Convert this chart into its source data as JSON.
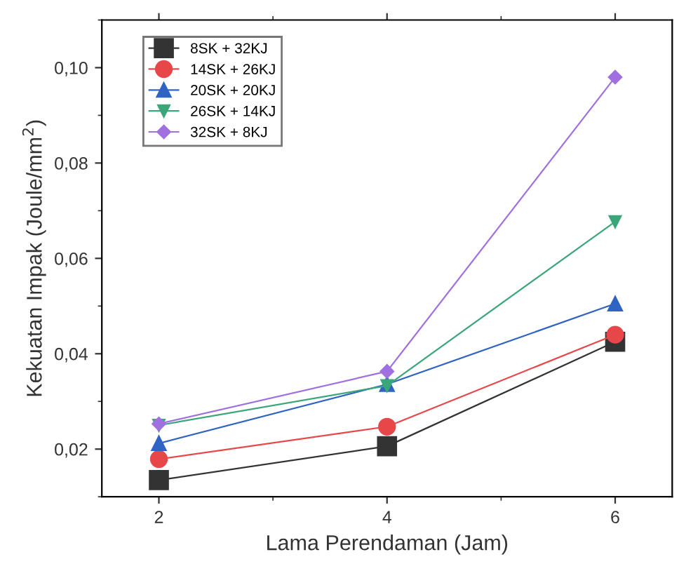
{
  "chart_data": {
    "type": "line",
    "xlabel": "Lama Perendaman (Jam)",
    "ylabel": "Kekuatan Impak (Joule/mm$^{2}$)",
    "x": [
      2,
      4,
      6
    ],
    "series": [
      {
        "name": "8SK + 32KJ",
        "color": "#333333",
        "marker": "square",
        "values": [
          0.0135,
          0.0206,
          0.0425
        ]
      },
      {
        "name": "14SK + 26KJ",
        "color": "#e8474a",
        "marker": "circle",
        "values": [
          0.0179,
          0.0247,
          0.044
        ]
      },
      {
        "name": "20SK + 20KJ",
        "color": "#2f63c4",
        "marker": "triangle",
        "values": [
          0.0212,
          0.0336,
          0.0505
        ]
      },
      {
        "name": "26SK + 14KJ",
        "color": "#3aa67a",
        "marker": "triangle_down",
        "values": [
          0.025,
          0.0333,
          0.0677
        ]
      },
      {
        "name": "32SK + 8KJ",
        "color": "#a070e0",
        "marker": "diamond",
        "values": [
          0.0253,
          0.0363,
          0.098
        ]
      }
    ],
    "xlim": [
      1.5,
      6.5
    ],
    "xticks": [
      2,
      4,
      6
    ],
    "ylim": [
      0.01,
      0.11
    ],
    "yticks": [
      {
        "value": 0.02,
        "label": "0,02"
      },
      {
        "value": 0.04,
        "label": "0,04"
      },
      {
        "value": 0.06,
        "label": "0,06"
      },
      {
        "value": 0.08,
        "label": "0,08"
      },
      {
        "value": 0.1,
        "label": "0,10"
      }
    ],
    "grid": false,
    "legend": "top left",
    "line_style": "solid"
  }
}
